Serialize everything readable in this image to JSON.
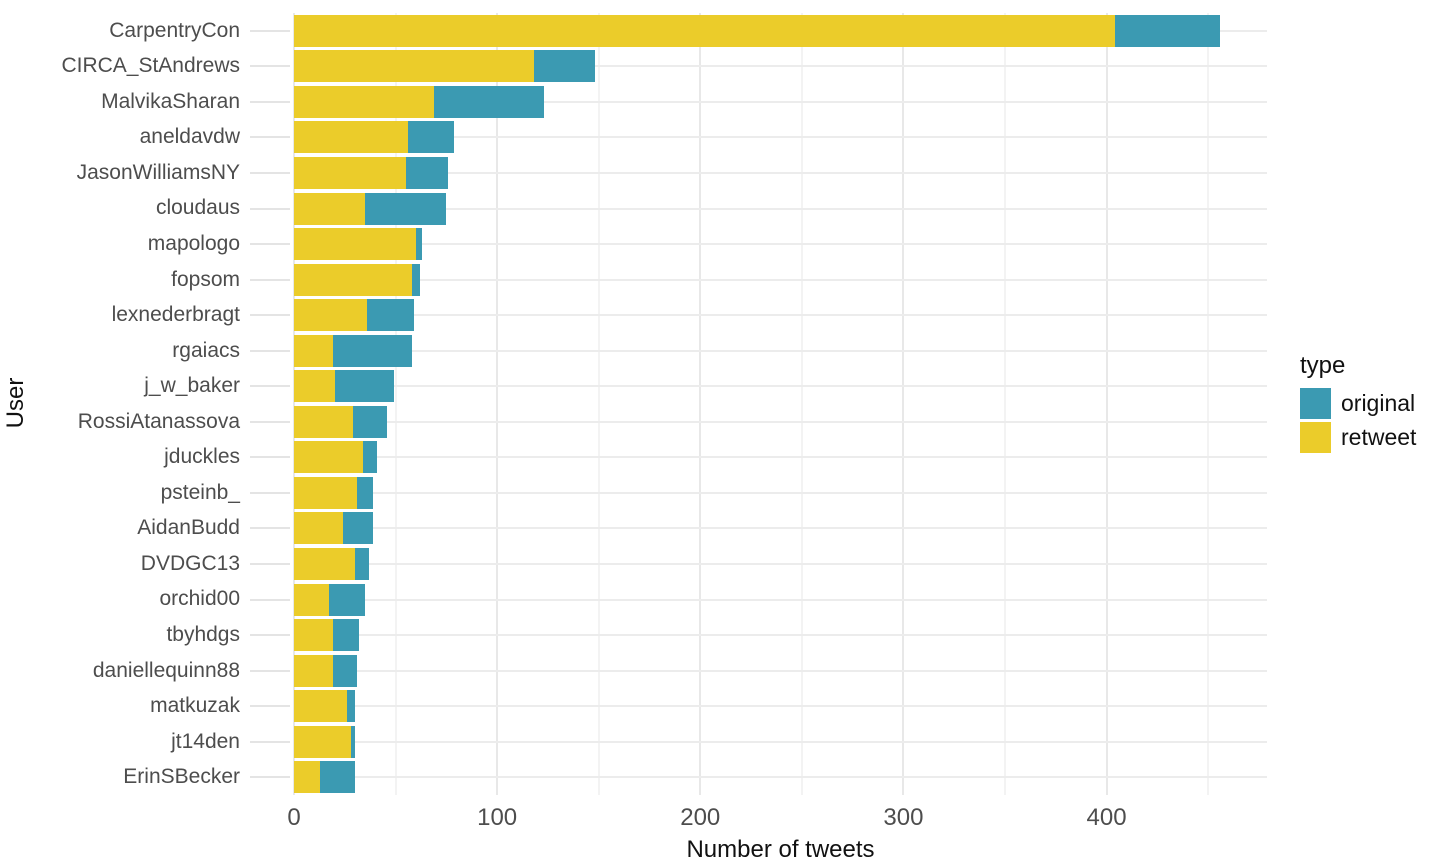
{
  "chart_data": {
    "type": "bar",
    "orientation": "horizontal",
    "stacked": true,
    "xlabel": "Number of tweets",
    "ylabel": "User",
    "xlim": [
      0,
      479
    ],
    "x_major_ticks": [
      0,
      100,
      200,
      300,
      400
    ],
    "x_minor_ticks": [
      50,
      150,
      250,
      350,
      450
    ],
    "grid": true,
    "categories": [
      "CarpentryCon",
      "CIRCA_StAndrews",
      "MalvikaSharan",
      "aneldavdw",
      "JasonWilliamsNY",
      "cloudaus",
      "mapologo",
      "fopsom",
      "lexnederbragt",
      "rgaiacs",
      "j_w_baker",
      "RossiAtanassova",
      "jduckles",
      "psteinb_",
      "AidanBudd",
      "DVDGC13",
      "orchid00",
      "tbyhdgs",
      "daniellequinn88",
      "matkuzak",
      "jt14den",
      "ErinSBecker"
    ],
    "series": [
      {
        "name": "retweet",
        "color": "#EBCC2A",
        "values": [
          404,
          118,
          69,
          56,
          55,
          35,
          60,
          58,
          36,
          19,
          20,
          29,
          34,
          31,
          24,
          30,
          17,
          19,
          19,
          26,
          28,
          13
        ]
      },
      {
        "name": "original",
        "color": "#3B9AB2",
        "values": [
          52,
          30,
          54,
          23,
          21,
          40,
          3,
          4,
          23,
          39,
          29,
          17,
          7,
          8,
          15,
          7,
          18,
          13,
          12,
          4,
          2,
          17
        ]
      }
    ],
    "legend": {
      "title": "type",
      "position": "right",
      "items": [
        {
          "label": "original",
          "color": "#3B9AB2"
        },
        {
          "label": "retweet",
          "color": "#EBCC2A"
        }
      ]
    }
  },
  "colors": {
    "background": "#ffffff",
    "grid_major": "#E8E8E8",
    "grid_minor": "#F3F3F3",
    "axis_text": "#4D4D4D",
    "axis_title": "#111111"
  }
}
